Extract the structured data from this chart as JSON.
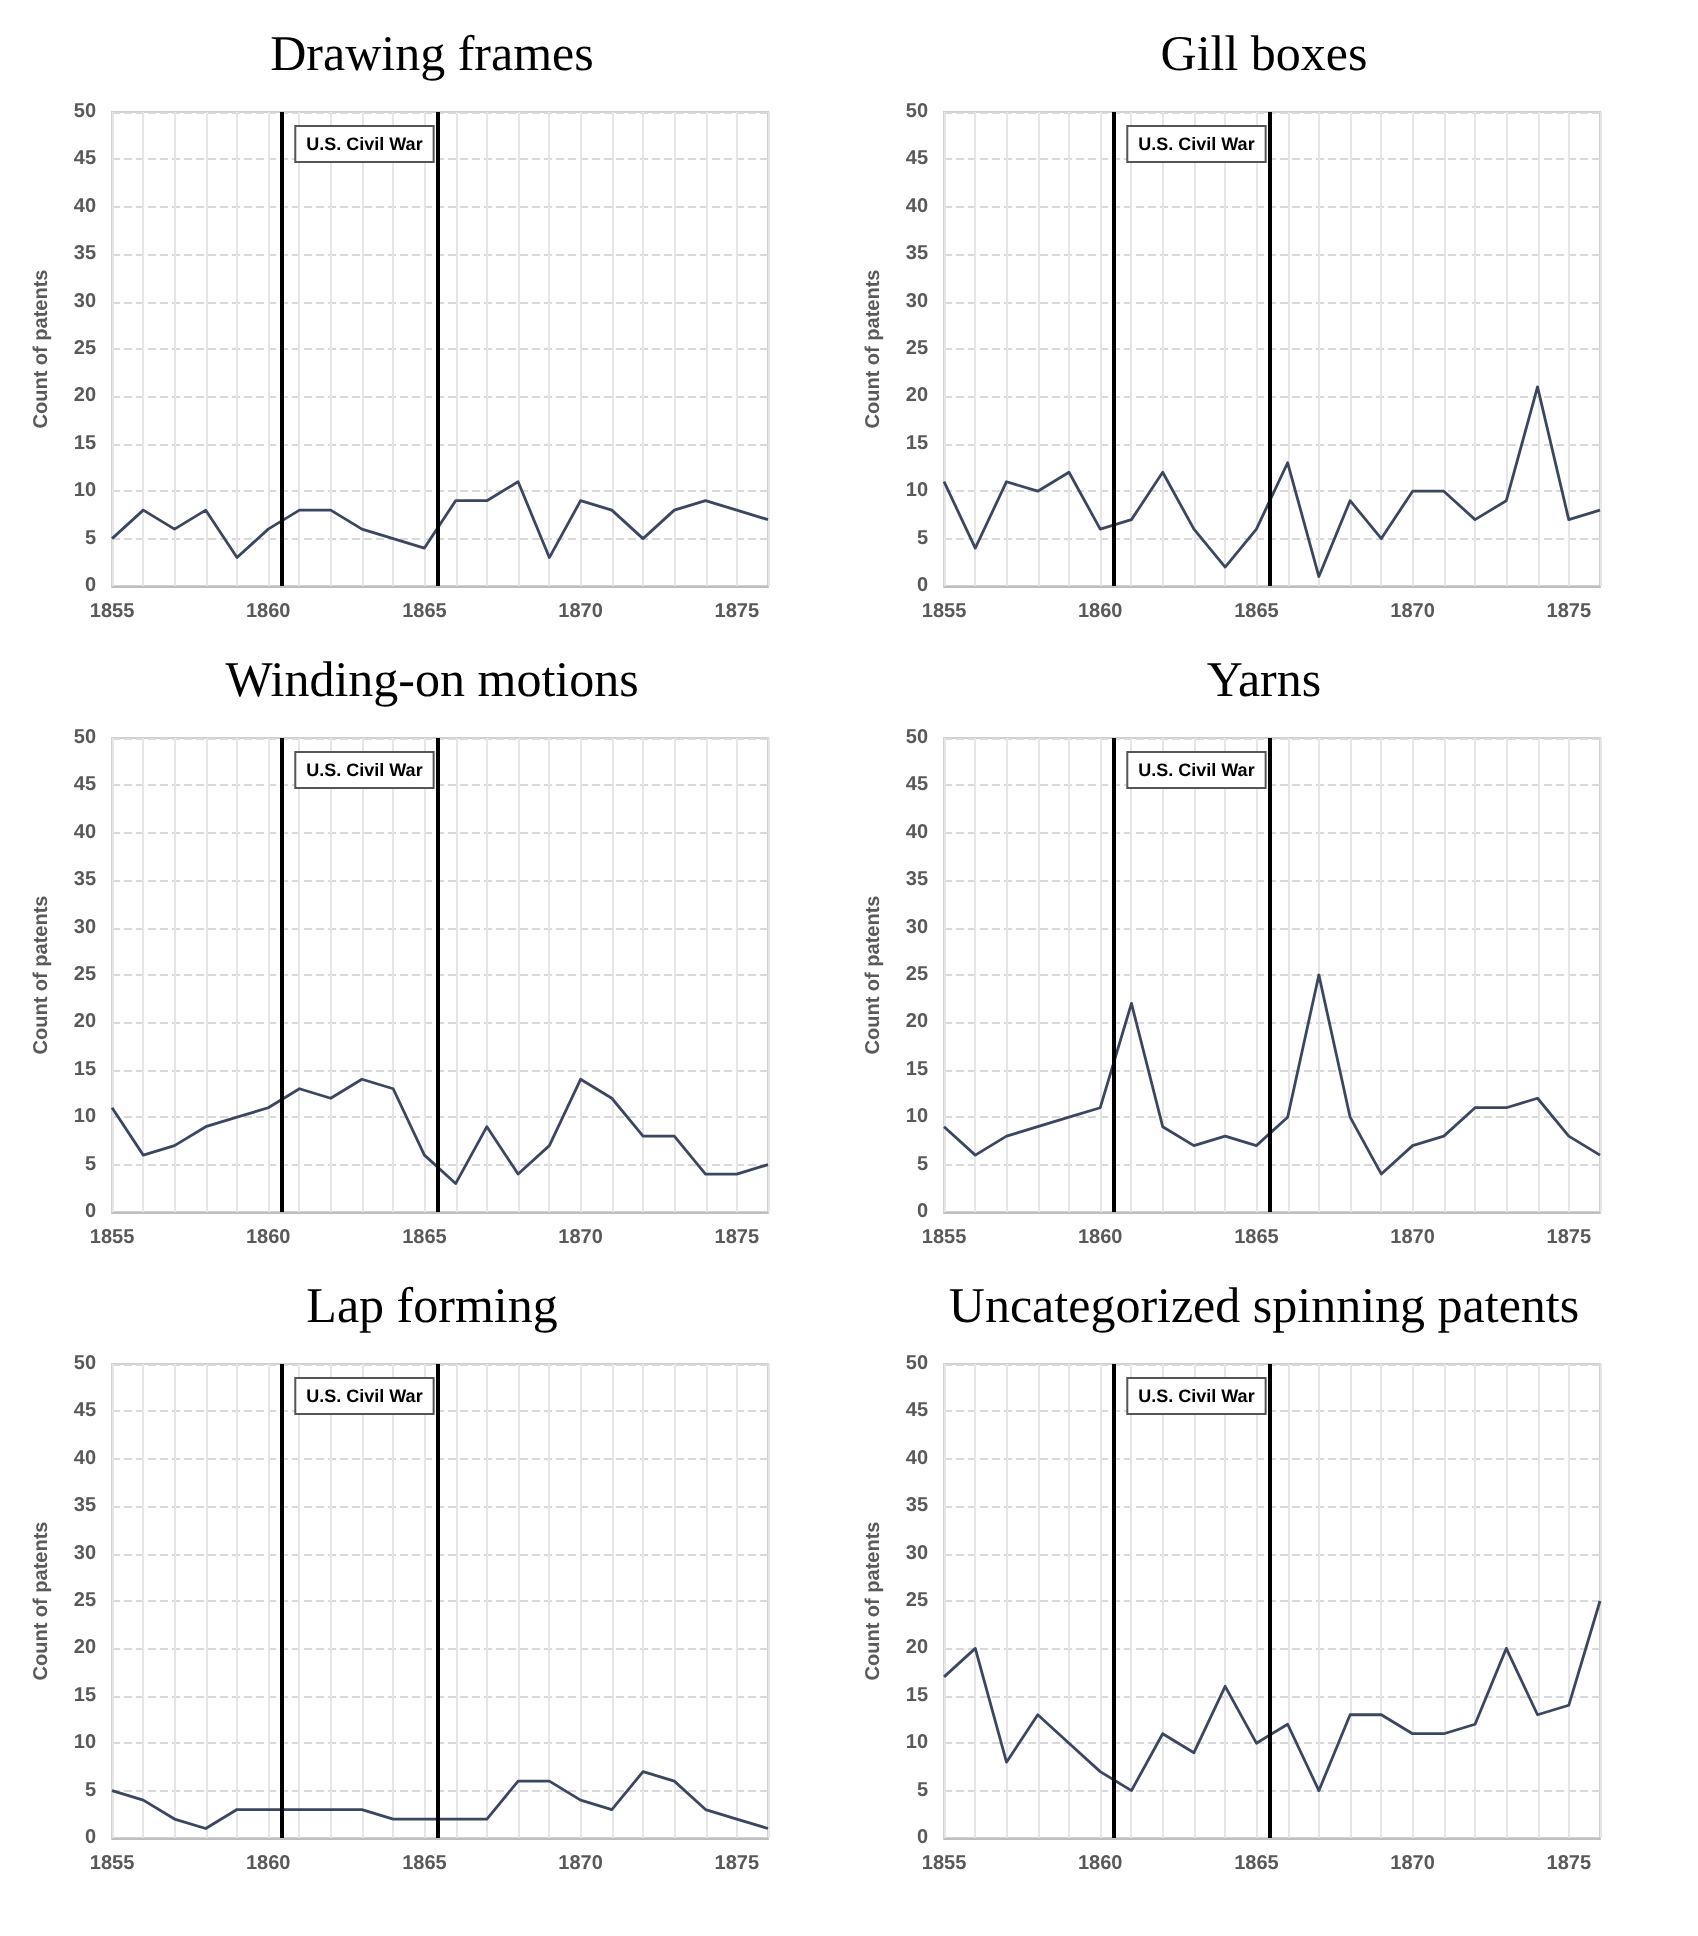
{
  "chart_data": [
    {
      "type": "line",
      "title": "Drawing frames",
      "ylabel": "Count of patents",
      "x": [
        1855,
        1856,
        1857,
        1858,
        1859,
        1860,
        1861,
        1862,
        1863,
        1864,
        1865,
        1866,
        1867,
        1868,
        1869,
        1870,
        1871,
        1872,
        1873,
        1874,
        1875,
        1876
      ],
      "series": [
        {
          "color": "#3b4660",
          "values": [
            5,
            8,
            6,
            8,
            3,
            6,
            8,
            8,
            6,
            5,
            4,
            9,
            9,
            11,
            3,
            9,
            8,
            5,
            8,
            9,
            8,
            7
          ]
        }
      ],
      "xlim": [
        1855,
        1876
      ],
      "xticks": [
        1855,
        {
          "value": 1856,
          "label": null
        },
        {
          "value": 1857,
          "label": null
        },
        {
          "value": 1858,
          "label": null
        },
        {
          "value": 1859,
          "label": null
        },
        1860,
        {
          "value": 1861,
          "label": null
        },
        {
          "value": 1862,
          "label": null
        },
        {
          "value": 1863,
          "label": null
        },
        {
          "value": 1864,
          "label": null
        },
        1865,
        {
          "value": 1866,
          "label": null
        },
        {
          "value": 1867,
          "label": null
        },
        {
          "value": 1868,
          "label": null
        },
        {
          "value": 1869,
          "label": null
        },
        1870,
        {
          "value": 1871,
          "label": null
        },
        {
          "value": 1872,
          "label": null
        },
        {
          "value": 1873,
          "label": null
        },
        {
          "value": 1874,
          "label": null
        },
        1875,
        {
          "value": 1876,
          "label": null
        }
      ],
      "ylim": [
        0,
        50
      ],
      "yticks": [
        0,
        5,
        10,
        15,
        20,
        25,
        30,
        35,
        40,
        45,
        50
      ],
      "grid": true,
      "marker": "none",
      "ref_lines": [
        {
          "axis": "x",
          "value": 1860.45,
          "label": "U.S. Civil War",
          "color": "#000000"
        },
        {
          "axis": "x",
          "value": 1865.45,
          "label": null,
          "color": "#000000"
        }
      ]
    },
    {
      "type": "line",
      "title": "Gill boxes",
      "ylabel": "Count of patents",
      "x": [
        1855,
        1856,
        1857,
        1858,
        1859,
        1860,
        1861,
        1862,
        1863,
        1864,
        1865,
        1866,
        1867,
        1868,
        1869,
        1870,
        1871,
        1872,
        1873,
        1874,
        1875,
        1876
      ],
      "series": [
        {
          "color": "#3b4660",
          "values": [
            11,
            4,
            11,
            10,
            12,
            6,
            7,
            12,
            6,
            2,
            6,
            13,
            1,
            9,
            5,
            10,
            10,
            7,
            9,
            21,
            7,
            8
          ]
        }
      ],
      "xlim": [
        1855,
        1876
      ],
      "xticks": [
        1855,
        {
          "value": 1856,
          "label": null
        },
        {
          "value": 1857,
          "label": null
        },
        {
          "value": 1858,
          "label": null
        },
        {
          "value": 1859,
          "label": null
        },
        1860,
        {
          "value": 1861,
          "label": null
        },
        {
          "value": 1862,
          "label": null
        },
        {
          "value": 1863,
          "label": null
        },
        {
          "value": 1864,
          "label": null
        },
        1865,
        {
          "value": 1866,
          "label": null
        },
        {
          "value": 1867,
          "label": null
        },
        {
          "value": 1868,
          "label": null
        },
        {
          "value": 1869,
          "label": null
        },
        1870,
        {
          "value": 1871,
          "label": null
        },
        {
          "value": 1872,
          "label": null
        },
        {
          "value": 1873,
          "label": null
        },
        {
          "value": 1874,
          "label": null
        },
        1875,
        {
          "value": 1876,
          "label": null
        }
      ],
      "ylim": [
        0,
        50
      ],
      "yticks": [
        0,
        5,
        10,
        15,
        20,
        25,
        30,
        35,
        40,
        45,
        50
      ],
      "grid": true,
      "marker": "none",
      "ref_lines": [
        {
          "axis": "x",
          "value": 1860.45,
          "label": "U.S. Civil War",
          "color": "#000000"
        },
        {
          "axis": "x",
          "value": 1865.45,
          "label": null,
          "color": "#000000"
        }
      ]
    },
    {
      "type": "line",
      "title": "Winding-on motions",
      "ylabel": "Count of patents",
      "x": [
        1855,
        1856,
        1857,
        1858,
        1859,
        1860,
        1861,
        1862,
        1863,
        1864,
        1865,
        1866,
        1867,
        1868,
        1869,
        1870,
        1871,
        1872,
        1873,
        1874,
        1875,
        1876
      ],
      "series": [
        {
          "color": "#3b4660",
          "values": [
            11,
            6,
            7,
            9,
            10,
            11,
            13,
            12,
            14,
            13,
            6,
            3,
            9,
            4,
            7,
            14,
            12,
            8,
            8,
            4,
            4,
            5
          ]
        }
      ],
      "xlim": [
        1855,
        1876
      ],
      "xticks": [
        1855,
        {
          "value": 1856,
          "label": null
        },
        {
          "value": 1857,
          "label": null
        },
        {
          "value": 1858,
          "label": null
        },
        {
          "value": 1859,
          "label": null
        },
        1860,
        {
          "value": 1861,
          "label": null
        },
        {
          "value": 1862,
          "label": null
        },
        {
          "value": 1863,
          "label": null
        },
        {
          "value": 1864,
          "label": null
        },
        1865,
        {
          "value": 1866,
          "label": null
        },
        {
          "value": 1867,
          "label": null
        },
        {
          "value": 1868,
          "label": null
        },
        {
          "value": 1869,
          "label": null
        },
        1870,
        {
          "value": 1871,
          "label": null
        },
        {
          "value": 1872,
          "label": null
        },
        {
          "value": 1873,
          "label": null
        },
        {
          "value": 1874,
          "label": null
        },
        1875,
        {
          "value": 1876,
          "label": null
        }
      ],
      "ylim": [
        0,
        50
      ],
      "yticks": [
        0,
        5,
        10,
        15,
        20,
        25,
        30,
        35,
        40,
        45,
        50
      ],
      "grid": true,
      "marker": "none",
      "ref_lines": [
        {
          "axis": "x",
          "value": 1860.45,
          "label": "U.S. Civil War",
          "color": "#000000"
        },
        {
          "axis": "x",
          "value": 1865.45,
          "label": null,
          "color": "#000000"
        }
      ]
    },
    {
      "type": "line",
      "title": "Yarns",
      "ylabel": "Count of patents",
      "x": [
        1855,
        1856,
        1857,
        1858,
        1859,
        1860,
        1861,
        1862,
        1863,
        1864,
        1865,
        1866,
        1867,
        1868,
        1869,
        1870,
        1871,
        1872,
        1873,
        1874,
        1875,
        1876
      ],
      "series": [
        {
          "color": "#3b4660",
          "values": [
            9,
            6,
            8,
            9,
            10,
            11,
            22,
            9,
            7,
            8,
            7,
            10,
            25,
            10,
            4,
            7,
            8,
            11,
            11,
            12,
            8,
            6
          ]
        }
      ],
      "xlim": [
        1855,
        1876
      ],
      "xticks": [
        1855,
        {
          "value": 1856,
          "label": null
        },
        {
          "value": 1857,
          "label": null
        },
        {
          "value": 1858,
          "label": null
        },
        {
          "value": 1859,
          "label": null
        },
        1860,
        {
          "value": 1861,
          "label": null
        },
        {
          "value": 1862,
          "label": null
        },
        {
          "value": 1863,
          "label": null
        },
        {
          "value": 1864,
          "label": null
        },
        1865,
        {
          "value": 1866,
          "label": null
        },
        {
          "value": 1867,
          "label": null
        },
        {
          "value": 1868,
          "label": null
        },
        {
          "value": 1869,
          "label": null
        },
        1870,
        {
          "value": 1871,
          "label": null
        },
        {
          "value": 1872,
          "label": null
        },
        {
          "value": 1873,
          "label": null
        },
        {
          "value": 1874,
          "label": null
        },
        1875,
        {
          "value": 1876,
          "label": null
        }
      ],
      "ylim": [
        0,
        50
      ],
      "yticks": [
        0,
        5,
        10,
        15,
        20,
        25,
        30,
        35,
        40,
        45,
        50
      ],
      "grid": true,
      "marker": "none",
      "ref_lines": [
        {
          "axis": "x",
          "value": 1860.45,
          "label": "U.S. Civil War",
          "color": "#000000"
        },
        {
          "axis": "x",
          "value": 1865.45,
          "label": null,
          "color": "#000000"
        }
      ]
    },
    {
      "type": "line",
      "title": "Lap forming",
      "ylabel": "Count of patents",
      "x": [
        1855,
        1856,
        1857,
        1858,
        1859,
        1860,
        1861,
        1862,
        1863,
        1864,
        1865,
        1866,
        1867,
        1868,
        1869,
        1870,
        1871,
        1872,
        1873,
        1874,
        1875,
        1876
      ],
      "series": [
        {
          "color": "#3b4660",
          "values": [
            5,
            4,
            2,
            1,
            3,
            3,
            3,
            3,
            3,
            2,
            2,
            2,
            2,
            6,
            6,
            4,
            3,
            7,
            6,
            3,
            2,
            1
          ]
        }
      ],
      "xlim": [
        1855,
        1876
      ],
      "xticks": [
        1855,
        {
          "value": 1856,
          "label": null
        },
        {
          "value": 1857,
          "label": null
        },
        {
          "value": 1858,
          "label": null
        },
        {
          "value": 1859,
          "label": null
        },
        1860,
        {
          "value": 1861,
          "label": null
        },
        {
          "value": 1862,
          "label": null
        },
        {
          "value": 1863,
          "label": null
        },
        {
          "value": 1864,
          "label": null
        },
        1865,
        {
          "value": 1866,
          "label": null
        },
        {
          "value": 1867,
          "label": null
        },
        {
          "value": 1868,
          "label": null
        },
        {
          "value": 1869,
          "label": null
        },
        1870,
        {
          "value": 1871,
          "label": null
        },
        {
          "value": 1872,
          "label": null
        },
        {
          "value": 1873,
          "label": null
        },
        {
          "value": 1874,
          "label": null
        },
        1875,
        {
          "value": 1876,
          "label": null
        }
      ],
      "ylim": [
        0,
        50
      ],
      "yticks": [
        0,
        5,
        10,
        15,
        20,
        25,
        30,
        35,
        40,
        45,
        50
      ],
      "grid": true,
      "marker": "none",
      "ref_lines": [
        {
          "axis": "x",
          "value": 1860.45,
          "label": "U.S. Civil War",
          "color": "#000000"
        },
        {
          "axis": "x",
          "value": 1865.45,
          "label": null,
          "color": "#000000"
        }
      ]
    },
    {
      "type": "line",
      "title": "Uncategorized spinning patents",
      "ylabel": "Count of patents",
      "x": [
        1855,
        1856,
        1857,
        1858,
        1859,
        1860,
        1861,
        1862,
        1863,
        1864,
        1865,
        1866,
        1867,
        1868,
        1869,
        1870,
        1871,
        1872,
        1873,
        1874,
        1875,
        1876
      ],
      "series": [
        {
          "color": "#3b4660",
          "values": [
            17,
            20,
            8,
            13,
            10,
            7,
            5,
            11,
            9,
            16,
            10,
            12,
            5,
            13,
            13,
            11,
            11,
            12,
            20,
            13,
            14,
            25
          ]
        }
      ],
      "xlim": [
        1855,
        1876
      ],
      "xticks": [
        1855,
        {
          "value": 1856,
          "label": null
        },
        {
          "value": 1857,
          "label": null
        },
        {
          "value": 1858,
          "label": null
        },
        {
          "value": 1859,
          "label": null
        },
        1860,
        {
          "value": 1861,
          "label": null
        },
        {
          "value": 1862,
          "label": null
        },
        {
          "value": 1863,
          "label": null
        },
        {
          "value": 1864,
          "label": null
        },
        1865,
        {
          "value": 1866,
          "label": null
        },
        {
          "value": 1867,
          "label": null
        },
        {
          "value": 1868,
          "label": null
        },
        {
          "value": 1869,
          "label": null
        },
        1870,
        {
          "value": 1871,
          "label": null
        },
        {
          "value": 1872,
          "label": null
        },
        {
          "value": 1873,
          "label": null
        },
        {
          "value": 1874,
          "label": null
        },
        1875,
        {
          "value": 1876,
          "label": null
        }
      ],
      "ylim": [
        0,
        50
      ],
      "yticks": [
        0,
        5,
        10,
        15,
        20,
        25,
        30,
        35,
        40,
        45,
        50
      ],
      "grid": true,
      "marker": "none",
      "ref_lines": [
        {
          "axis": "x",
          "value": 1860.45,
          "label": "U.S. Civil War",
          "color": "#000000"
        },
        {
          "axis": "x",
          "value": 1865.45,
          "label": null,
          "color": "#000000"
        }
      ]
    }
  ]
}
